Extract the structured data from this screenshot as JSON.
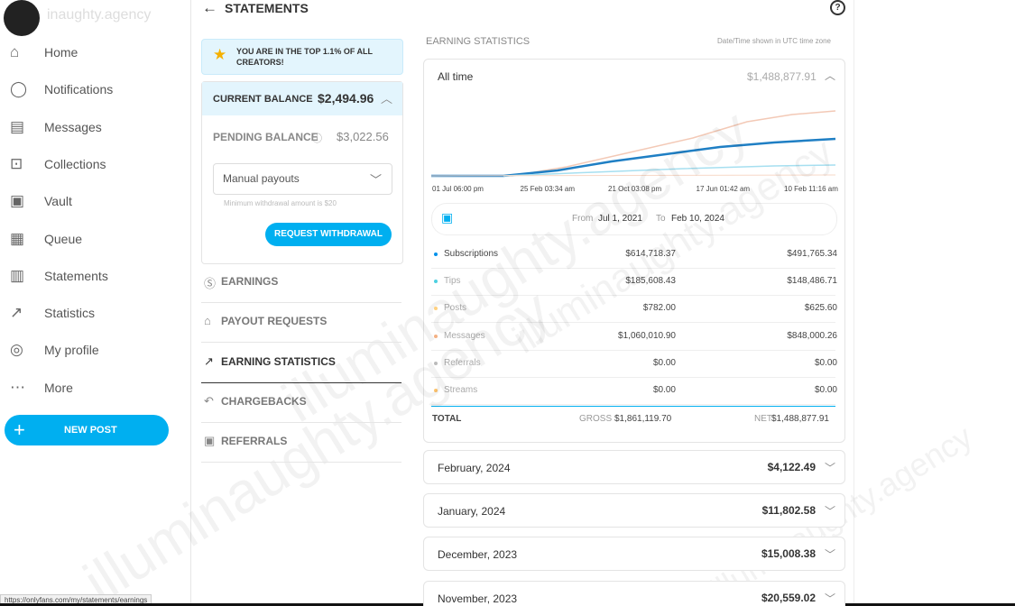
{
  "brand": "inaughty.agency",
  "watermark": "illuminaughty.agency",
  "sidebar": {
    "items": [
      "Home",
      "Notifications",
      "Messages",
      "Collections",
      "Vault",
      "Queue",
      "Statements",
      "Statistics",
      "My profile",
      "More"
    ],
    "new_post": "NEW POST"
  },
  "header": {
    "title": "STATEMENTS"
  },
  "banner": "YOU ARE IN THE TOP 1.1% OF ALL CREATORS!",
  "balance": {
    "current_label": "CURRENT BALANCE",
    "current": "$2,494.96",
    "pending_label": "PENDING BALANCE",
    "pending": "$3,022.56",
    "payout_select": "Manual payouts",
    "min_note": "Minimum withdrawal amount is $20",
    "button": "REQUEST WITHDRAWAL"
  },
  "menu": [
    "EARNINGS",
    "PAYOUT REQUESTS",
    "EARNING STATISTICS",
    "CHARGEBACKS",
    "REFERRALS"
  ],
  "stats": {
    "heading": "EARNING STATISTICS",
    "tz_note": "Date/Time shown in UTC time zone",
    "period": "All time",
    "period_total": "$1,488,877.91",
    "x_labels": [
      "01 Jul 06:00 pm",
      "25 Feb 03:34 am",
      "21 Oct 03:08 pm",
      "17 Jun 01:42 am",
      "10 Feb 11:16 am"
    ],
    "from_label": "From",
    "from": "Jul 1, 2021",
    "to_label": "To",
    "to": "Feb 10, 2024",
    "rows": [
      {
        "name": "Subscriptions",
        "gross": "$614,718.37",
        "net": "$491,765.34"
      },
      {
        "name": "Tips",
        "gross": "$185,608.43",
        "net": "$148,486.71"
      },
      {
        "name": "Posts",
        "gross": "$782.00",
        "net": "$625.60"
      },
      {
        "name": "Messages",
        "gross": "$1,060,010.90",
        "net": "$848,000.26"
      },
      {
        "name": "Referrals",
        "gross": "$0.00",
        "net": "$0.00"
      },
      {
        "name": "Streams",
        "gross": "$0.00",
        "net": "$0.00"
      }
    ],
    "total_label": "TOTAL",
    "gross_label": "GROSS",
    "gross": "$1,861,119.70",
    "net_label": "NET",
    "net": "$1,488,877.91"
  },
  "months": [
    {
      "label": "February, 2024",
      "amount": "$4,122.49"
    },
    {
      "label": "January, 2024",
      "amount": "$11,802.58"
    },
    {
      "label": "December, 2023",
      "amount": "$15,008.38"
    },
    {
      "label": "November, 2023",
      "amount": "$20,559.02"
    }
  ],
  "status_url": "https://onlyfans.com/my/statements/earnings"
}
